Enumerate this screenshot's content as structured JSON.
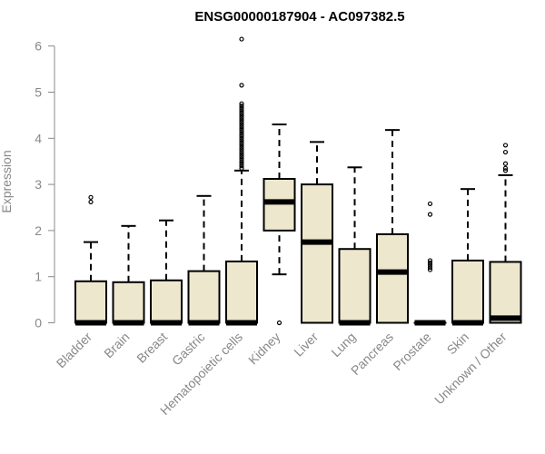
{
  "chart_data": {
    "type": "box",
    "title": "ENSG00000187904 - AC097382.5",
    "xlabel": "",
    "ylabel": "Expression",
    "ylim": [
      0,
      6.2
    ],
    "yticks": [
      0,
      1,
      2,
      3,
      4,
      5,
      6
    ],
    "box_fill": "#ede7cd",
    "box_stroke": "#000000",
    "axis_color": "#888888",
    "categories": [
      "Bladder",
      "Brain",
      "Breast",
      "Gastric",
      "Hematopoietic cells",
      "Kidney",
      "Liver",
      "Lung",
      "Pancreas",
      "Prostate",
      "Skin",
      "Unknown / Other"
    ],
    "boxes": [
      {
        "min": 0,
        "q1": 0,
        "median": 0,
        "q3": 0.9,
        "max": 1.75,
        "outliers": [
          2.62,
          2.72
        ]
      },
      {
        "min": 0,
        "q1": 0,
        "median": 0,
        "q3": 0.88,
        "max": 2.1,
        "outliers": []
      },
      {
        "min": 0,
        "q1": 0,
        "median": 0,
        "q3": 0.92,
        "max": 2.22,
        "outliers": []
      },
      {
        "min": 0,
        "q1": 0,
        "median": 0,
        "q3": 1.12,
        "max": 2.75,
        "outliers": []
      },
      {
        "min": 0,
        "q1": 0,
        "median": 0,
        "q3": 1.33,
        "max": 3.3,
        "outliers": [
          3.35,
          3.4,
          3.45,
          3.5,
          3.55,
          3.6,
          3.65,
          3.7,
          3.75,
          3.8,
          3.85,
          3.9,
          3.95,
          4.0,
          4.05,
          4.1,
          4.15,
          4.2,
          4.25,
          4.3,
          4.35,
          4.4,
          4.45,
          4.5,
          4.55,
          4.6,
          4.65,
          4.7,
          4.75,
          5.15,
          6.15
        ]
      },
      {
        "min": 1.05,
        "q1": 2.0,
        "median": 2.62,
        "q3": 3.12,
        "max": 4.3,
        "outliers": [
          0.0
        ]
      },
      {
        "min": 0,
        "q1": 0,
        "median": 1.75,
        "q3": 3.0,
        "max": 3.92,
        "outliers": []
      },
      {
        "min": 0,
        "q1": 0,
        "median": 0,
        "q3": 1.6,
        "max": 3.37,
        "outliers": []
      },
      {
        "min": 0,
        "q1": 0,
        "median": 1.1,
        "q3": 1.92,
        "max": 4.18,
        "outliers": []
      },
      {
        "min": 0,
        "q1": 0,
        "median": 0,
        "q3": 0,
        "max": 0,
        "outliers": [
          1.15,
          1.2,
          1.25,
          1.3,
          1.35,
          2.35,
          2.58
        ]
      },
      {
        "min": 0,
        "q1": 0,
        "median": 0,
        "q3": 1.35,
        "max": 2.9,
        "outliers": []
      },
      {
        "min": 0,
        "q1": 0,
        "median": 0.1,
        "q3": 1.32,
        "max": 3.2,
        "outliers": [
          3.3,
          3.35,
          3.45,
          3.7,
          3.85
        ]
      }
    ]
  }
}
